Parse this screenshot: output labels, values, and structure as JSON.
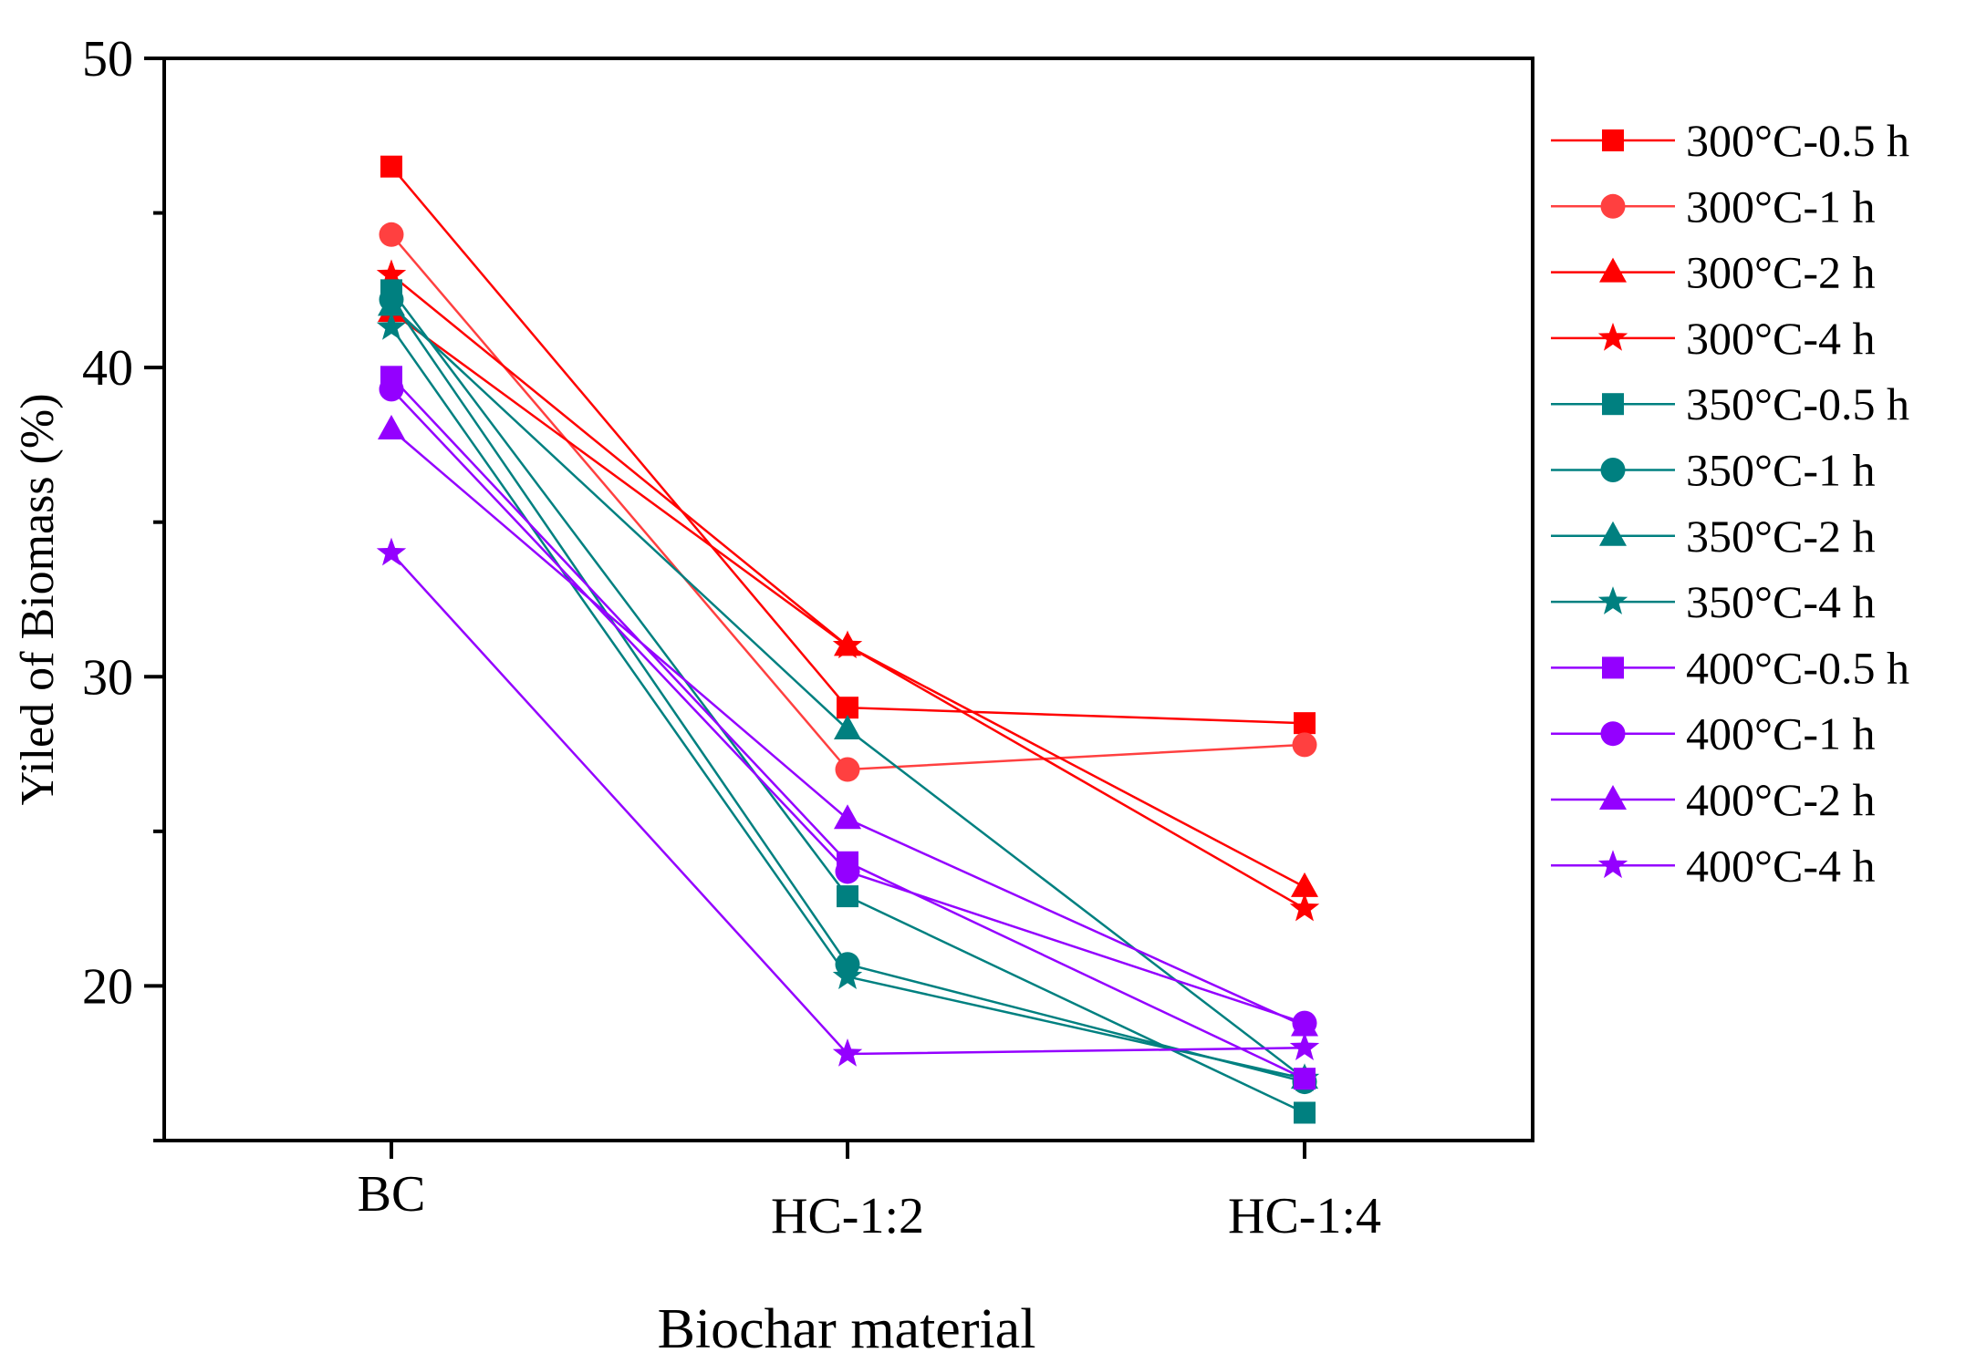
{
  "chart_data": {
    "type": "line",
    "title": "",
    "xlabel": "Biochar material",
    "ylabel": "Yiled of Biomass (%)",
    "categories": [
      "BC",
      "HC-1:2",
      "HC-1:4"
    ],
    "ylim": [
      15,
      50
    ],
    "yticks": [
      20,
      30,
      40,
      50
    ],
    "legend_position": "right-outside",
    "series": [
      {
        "name": "300°C-0.5 h",
        "color": "#ff0000",
        "marker": "square",
        "values": [
          46.5,
          29.0,
          28.5
        ]
      },
      {
        "name": "300°C-1 h",
        "color": "#ff4040",
        "marker": "circle",
        "values": [
          44.3,
          27.0,
          27.8
        ]
      },
      {
        "name": "300°C-2 h",
        "color": "#ff0000",
        "marker": "triangle",
        "values": [
          41.8,
          31.0,
          23.2
        ]
      },
      {
        "name": "300°C-4 h",
        "color": "#ff0000",
        "marker": "star",
        "values": [
          43.0,
          31.0,
          22.5
        ]
      },
      {
        "name": "350°C-0.5 h",
        "color": "#008080",
        "marker": "square",
        "values": [
          42.5,
          22.9,
          15.9
        ]
      },
      {
        "name": "350°C-1 h",
        "color": "#008080",
        "marker": "circle",
        "values": [
          42.2,
          20.7,
          16.9
        ]
      },
      {
        "name": "350°C-2 h",
        "color": "#008080",
        "marker": "triangle",
        "values": [
          42.0,
          28.3,
          17.0
        ]
      },
      {
        "name": "350°C-4 h",
        "color": "#008080",
        "marker": "star",
        "values": [
          41.3,
          20.3,
          17.0
        ]
      },
      {
        "name": "400°C-0.5 h",
        "color": "#9400ff",
        "marker": "square",
        "values": [
          39.7,
          24.0,
          17.0
        ]
      },
      {
        "name": "400°C-1 h",
        "color": "#9400ff",
        "marker": "circle",
        "values": [
          39.3,
          23.7,
          18.8
        ]
      },
      {
        "name": "400°C-2 h",
        "color": "#9400ff",
        "marker": "triangle",
        "values": [
          38.0,
          25.4,
          18.7
        ]
      },
      {
        "name": "400°C-4 h",
        "color": "#9400ff",
        "marker": "star",
        "values": [
          34.0,
          17.8,
          18.0
        ]
      }
    ]
  }
}
